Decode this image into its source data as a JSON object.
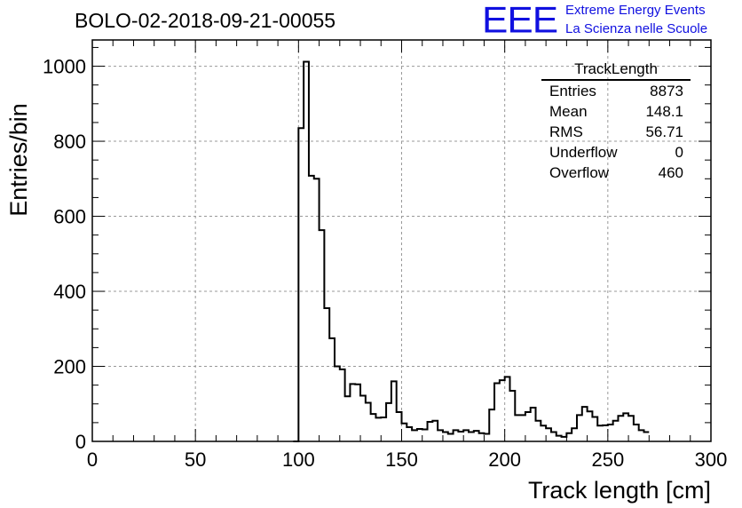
{
  "run_title": "BOLO-02-2018-09-21-00055",
  "logo": {
    "mark": "EEE",
    "line1": "Extreme Energy Events",
    "line2": "La Scienza nelle Scuole",
    "color": "#1010e0"
  },
  "stats_box": {
    "title": "TrackLength",
    "rows": [
      {
        "label": "Entries",
        "value": "8873"
      },
      {
        "label": "Mean",
        "value": "148.1"
      },
      {
        "label": "RMS",
        "value": "56.71"
      },
      {
        "label": "Underflow",
        "value": "0"
      },
      {
        "label": "Overflow",
        "value": "460"
      }
    ]
  },
  "chart_data": {
    "type": "histogram",
    "xlabel": "Track length [cm]",
    "ylabel": "Entries/bin",
    "xlim": [
      0,
      300
    ],
    "ylim": [
      0,
      1070
    ],
    "xticks": [
      0,
      50,
      100,
      150,
      200,
      250,
      300
    ],
    "yticks": [
      0,
      200,
      400,
      600,
      800,
      1000
    ],
    "grid": true,
    "bin_width": 2.5,
    "bins_start": 97.5,
    "values": [
      0,
      835,
      1012,
      708,
      700,
      563,
      355,
      275,
      200,
      192,
      120,
      153,
      152,
      122,
      103,
      73,
      63,
      64,
      102,
      160,
      78,
      48,
      38,
      30,
      33,
      32,
      52,
      55,
      30,
      25,
      20,
      30,
      26,
      30,
      25,
      28,
      22,
      20,
      85,
      155,
      163,
      172,
      135,
      70,
      70,
      78,
      90,
      55,
      42,
      35,
      25,
      15,
      12,
      22,
      35,
      70,
      92,
      80,
      65,
      42,
      43,
      45,
      55,
      68,
      75,
      68,
      45,
      30,
      25
    ]
  }
}
